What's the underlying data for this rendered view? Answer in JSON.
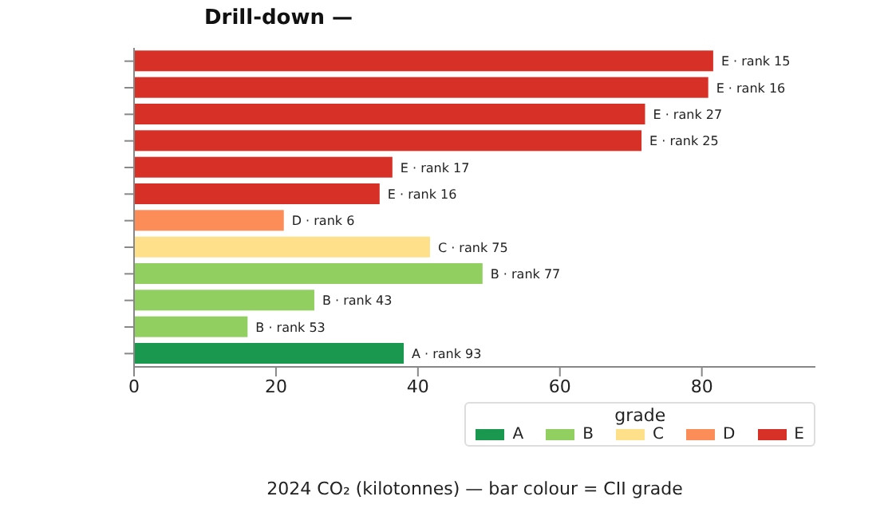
{
  "chart_data": {
    "type": "bar",
    "orientation": "horizontal",
    "stacked": true,
    "title": "Drill-down —",
    "xlabel": "2024 CO₂ (kilotonnes) — bar colour = CII grade",
    "legend_title": "grade",
    "categories": [
      null,
      null,
      null,
      null,
      null,
      null,
      null,
      null,
      null,
      null,
      null,
      null
    ],
    "series": [
      {
        "name": "A",
        "color": "#1a9850",
        "values": [
          null,
          null,
          null,
          null,
          null,
          null,
          null,
          null,
          null,
          null,
          null,
          38.0
        ],
        "value_labels": [
          null,
          null,
          null,
          null,
          null,
          null,
          null,
          null,
          null,
          null,
          null,
          "A · rank 93"
        ]
      },
      {
        "name": "B",
        "color": "#91cf60",
        "values": [
          null,
          null,
          null,
          null,
          null,
          null,
          null,
          null,
          49.1,
          25.4,
          16.0,
          null
        ],
        "value_labels": [
          null,
          null,
          null,
          null,
          null,
          null,
          null,
          null,
          "B · rank 77",
          "B · rank 43",
          "B · rank 53",
          null
        ]
      },
      {
        "name": "C",
        "color": "#fee08b",
        "values": [
          null,
          null,
          null,
          null,
          null,
          null,
          null,
          41.7,
          null,
          null,
          null,
          null
        ],
        "value_labels": [
          null,
          null,
          null,
          null,
          null,
          null,
          null,
          "C · rank 75",
          null,
          null,
          null,
          null
        ]
      },
      {
        "name": "D",
        "color": "#fc8d59",
        "values": [
          null,
          null,
          null,
          null,
          null,
          null,
          21.1,
          null,
          null,
          null,
          null,
          null
        ],
        "value_labels": [
          null,
          null,
          null,
          null,
          null,
          null,
          "D · rank 6",
          null,
          null,
          null,
          null,
          null
        ]
      },
      {
        "name": "E",
        "color": "#d73027",
        "values": [
          81.6,
          80.9,
          72.0,
          71.5,
          36.4,
          34.6,
          null,
          null,
          null,
          null,
          null,
          null
        ],
        "value_labels": [
          "E · rank 15",
          "E · rank 16",
          "E · rank 27",
          "E · rank 25",
          "E · rank 17",
          "E · rank 16",
          null,
          null,
          null,
          null,
          null,
          null
        ]
      }
    ],
    "xlim": [
      0,
      96
    ],
    "xticks": [
      0,
      20,
      40,
      60,
      80
    ],
    "grid": false,
    "legend": "bottom right"
  }
}
